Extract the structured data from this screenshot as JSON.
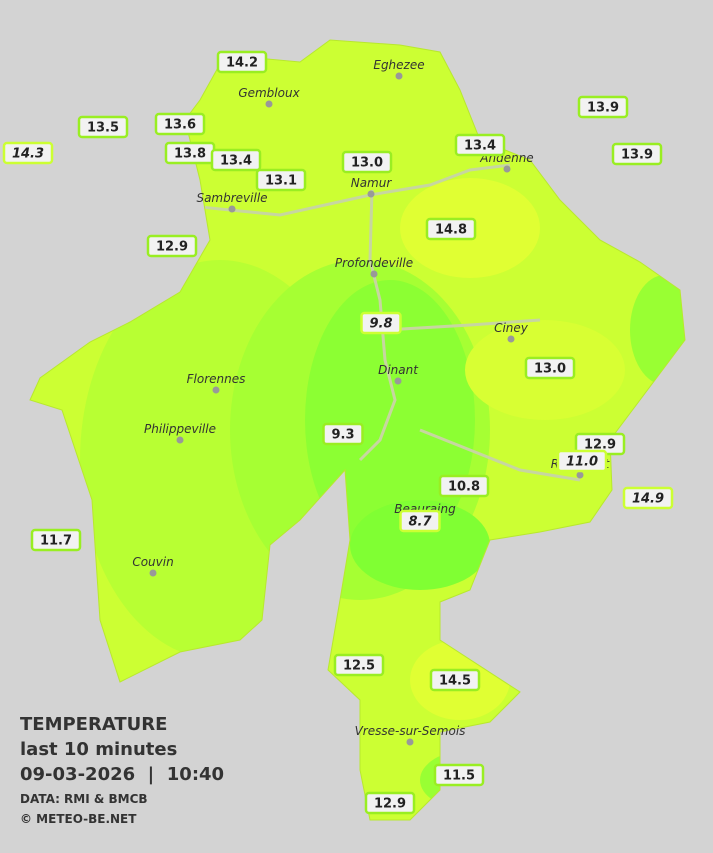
{
  "legend": {
    "title": "TEMPERATURE",
    "period": "last 10 minutes",
    "datetime": "09-03-2026  |  10:40",
    "source": "DATA: RMI & BMCB",
    "copyright": "© METEO-BE.NET"
  },
  "cities": [
    "Eghezee",
    "Gembloux",
    "Andenne",
    "Namur",
    "Sambreville",
    "Profondeville",
    "Ciney",
    "Dinant",
    "Florennes",
    "Philippeville",
    "Rochefort",
    "Beauraing",
    "Couvin",
    "Vresse-sur-Semois"
  ],
  "stations": [
    {
      "label": "14.2",
      "italic": false
    },
    {
      "label": "13.5",
      "italic": false
    },
    {
      "label": "14.3",
      "italic": true
    },
    {
      "label": "13.6",
      "italic": false
    },
    {
      "label": "13.8",
      "italic": false
    },
    {
      "label": "13.4",
      "italic": false
    },
    {
      "label": "13.1",
      "italic": false
    },
    {
      "label": "13.0",
      "italic": false
    },
    {
      "label": "13.4",
      "italic": false
    },
    {
      "label": "13.9",
      "italic": false
    },
    {
      "label": "13.9",
      "italic": false
    },
    {
      "label": "14.8",
      "italic": false
    },
    {
      "label": "12.9",
      "italic": false
    },
    {
      "label": "9.8",
      "italic": true
    },
    {
      "label": "13.0",
      "italic": false
    },
    {
      "label": "9.3",
      "italic": false
    },
    {
      "label": "12.9",
      "italic": false
    },
    {
      "label": "11.0",
      "italic": true
    },
    {
      "label": "14.9",
      "italic": true
    },
    {
      "label": "10.8",
      "italic": false
    },
    {
      "label": "8.7",
      "italic": true
    },
    {
      "label": "11.7",
      "italic": false
    },
    {
      "label": "12.5",
      "italic": false
    },
    {
      "label": "14.5",
      "italic": false
    },
    {
      "label": "11.5",
      "italic": false
    },
    {
      "label": "12.9",
      "italic": false
    }
  ]
}
